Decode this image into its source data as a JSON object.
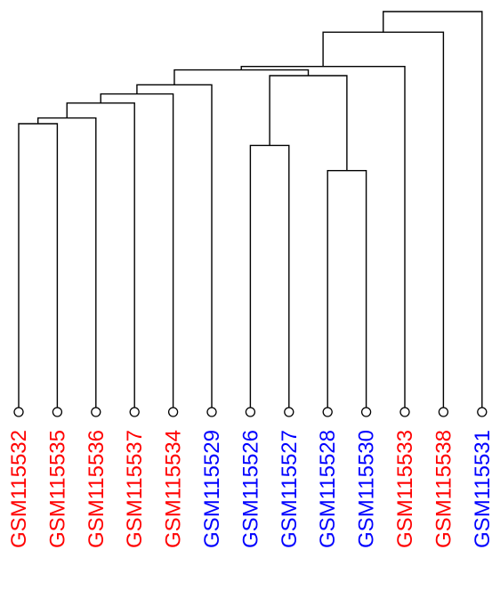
{
  "colors": {
    "red_group": "#ff0000",
    "blue_group": "#0000ff",
    "line": "#000000"
  },
  "dendrogram": {
    "orientation": "vertical",
    "leaves": [
      {
        "label": "GSM115532",
        "group": "red"
      },
      {
        "label": "GSM115535",
        "group": "red"
      },
      {
        "label": "GSM115536",
        "group": "red"
      },
      {
        "label": "GSM115537",
        "group": "red"
      },
      {
        "label": "GSM115534",
        "group": "red"
      },
      {
        "label": "GSM115529",
        "group": "blue"
      },
      {
        "label": "GSM115526",
        "group": "blue"
      },
      {
        "label": "GSM115527",
        "group": "blue"
      },
      {
        "label": "GSM115528",
        "group": "blue"
      },
      {
        "label": "GSM115530",
        "group": "blue"
      },
      {
        "label": "GSM115533",
        "group": "red"
      },
      {
        "label": "GSM115538",
        "group": "red"
      },
      {
        "label": "GSM115531",
        "group": "blue"
      }
    ],
    "merges": [
      {
        "left": "GSM115532",
        "right": "GSM115535",
        "height": 0.902
      },
      {
        "left": "m1",
        "right": "GSM115536",
        "height": 0.907
      },
      {
        "left": "GSM115526",
        "right": "GSM115527",
        "height": 0.883
      },
      {
        "left": "GSM115528",
        "right": "GSM115530",
        "height": 0.861
      },
      {
        "left": "m2",
        "right": "GSM115537",
        "height": 0.92
      },
      {
        "left": "m5",
        "right": "GSM115534",
        "height": 0.928
      },
      {
        "left": "m3",
        "right": "m4",
        "height": 0.944
      },
      {
        "left": "m6",
        "right": "GSM115529",
        "height": 0.936
      },
      {
        "left": "m8",
        "right": "m7",
        "height": 0.949
      },
      {
        "left": "m9",
        "right": "GSM115533",
        "height": 0.952
      },
      {
        "left": "m10",
        "right": "GSM115538",
        "height": 0.982
      },
      {
        "left": "m11",
        "right": "GSM115531",
        "height": 1.0
      }
    ]
  }
}
